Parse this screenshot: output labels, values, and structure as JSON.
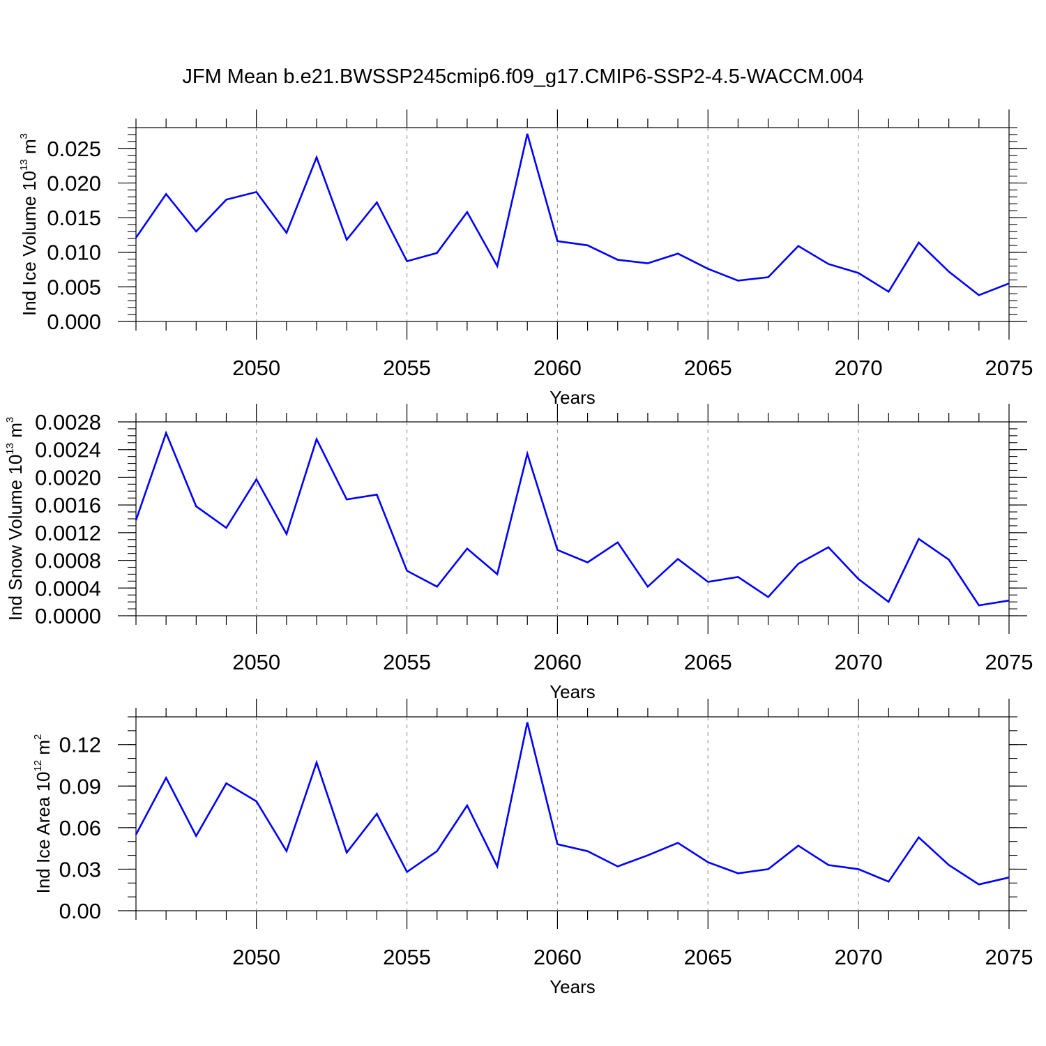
{
  "figure": {
    "title": "JFM Mean b.e21.BWSSP245cmip6.f09_g17.CMIP6-SSP2-4.5-WACCM.004",
    "line_color": "#0000ff",
    "grid_color": "#9a9a9a"
  },
  "chart_data": [
    {
      "type": "line",
      "title": "",
      "xlabel": "Years",
      "ylabel": {
        "base": "Ind Ice Volume 10",
        "exp": "13",
        "unit": " m",
        "unit_exp": "3"
      },
      "xlim": [
        2046,
        2075
      ],
      "ylim": [
        0,
        0.028
      ],
      "xticks": [
        2050,
        2055,
        2060,
        2065,
        2070,
        2075
      ],
      "xtick_labels": [
        "2050",
        "2055",
        "2060",
        "2065",
        "2070",
        "2075"
      ],
      "yticks": [
        0,
        0.005,
        0.01,
        0.015,
        0.02,
        0.025
      ],
      "ytick_labels": [
        "0.000",
        "0.005",
        "0.010",
        "0.015",
        "0.020",
        "0.025"
      ],
      "y_minor_step": 0.001,
      "grid": "vertical dashed at major x ticks",
      "x": [
        2046,
        2047,
        2048,
        2049,
        2050,
        2051,
        2052,
        2053,
        2054,
        2055,
        2056,
        2057,
        2058,
        2059,
        2060,
        2061,
        2062,
        2063,
        2064,
        2065,
        2066,
        2067,
        2068,
        2069,
        2070,
        2071,
        2072,
        2073,
        2074,
        2075
      ],
      "series": [
        {
          "values": [
            0.0121,
            0.0184,
            0.013,
            0.0176,
            0.0187,
            0.0128,
            0.0237,
            0.0118,
            0.0172,
            0.0087,
            0.0099,
            0.0158,
            0.008,
            0.0271,
            0.0116,
            0.011,
            0.0089,
            0.0084,
            0.0098,
            0.0076,
            0.0059,
            0.0064,
            0.0109,
            0.0083,
            0.007,
            0.0043,
            0.0114,
            0.0072,
            0.0038,
            0.0055
          ]
        }
      ]
    },
    {
      "type": "line",
      "title": "",
      "xlabel": "Years",
      "ylabel": {
        "base": "Ind Snow Volume 10",
        "exp": "13",
        "unit": " m",
        "unit_exp": "3"
      },
      "xlim": [
        2046,
        2075
      ],
      "ylim": [
        0,
        0.0028
      ],
      "xticks": [
        2050,
        2055,
        2060,
        2065,
        2070,
        2075
      ],
      "xtick_labels": [
        "2050",
        "2055",
        "2060",
        "2065",
        "2070",
        "2075"
      ],
      "yticks": [
        0,
        0.0004,
        0.0008,
        0.0012,
        0.0016,
        0.002,
        0.0024,
        0.0028
      ],
      "ytick_labels": [
        "0.0000",
        "0.0004",
        "0.0008",
        "0.0012",
        "0.0016",
        "0.0020",
        "0.0024",
        "0.0028"
      ],
      "y_minor_step": 0.0001,
      "grid": "vertical dashed at major x ticks",
      "x": [
        2046,
        2047,
        2048,
        2049,
        2050,
        2051,
        2052,
        2053,
        2054,
        2055,
        2056,
        2057,
        2058,
        2059,
        2060,
        2061,
        2062,
        2063,
        2064,
        2065,
        2066,
        2067,
        2068,
        2069,
        2070,
        2071,
        2072,
        2073,
        2074,
        2075
      ],
      "series": [
        {
          "values": [
            0.00138,
            0.00264,
            0.00158,
            0.00127,
            0.00197,
            0.00118,
            0.00255,
            0.00168,
            0.00175,
            0.00065,
            0.00042,
            0.00097,
            0.0006,
            0.00234,
            0.00095,
            0.00077,
            0.00106,
            0.00042,
            0.00082,
            0.00049,
            0.00056,
            0.00027,
            0.00075,
            0.00099,
            0.00053,
            0.0002,
            0.00111,
            0.00081,
            0.00015,
            0.00022
          ]
        }
      ]
    },
    {
      "type": "line",
      "title": "",
      "xlabel": "Years",
      "ylabel": {
        "base": "Ind Ice Area 10",
        "exp": "12",
        "unit": " m",
        "unit_exp": "2"
      },
      "xlim": [
        2046,
        2075
      ],
      "ylim": [
        0,
        0.14
      ],
      "xticks": [
        2050,
        2055,
        2060,
        2065,
        2070,
        2075
      ],
      "xtick_labels": [
        "2050",
        "2055",
        "2060",
        "2065",
        "2070",
        "2075"
      ],
      "yticks": [
        0,
        0.03,
        0.06,
        0.09,
        0.12
      ],
      "ytick_labels": [
        "0.00",
        "0.03",
        "0.06",
        "0.09",
        "0.12"
      ],
      "y_minor_step": 0.01,
      "grid": "vertical dashed at major x ticks",
      "x": [
        2046,
        2047,
        2048,
        2049,
        2050,
        2051,
        2052,
        2053,
        2054,
        2055,
        2056,
        2057,
        2058,
        2059,
        2060,
        2061,
        2062,
        2063,
        2064,
        2065,
        2066,
        2067,
        2068,
        2069,
        2070,
        2071,
        2072,
        2073,
        2074,
        2075
      ],
      "series": [
        {
          "values": [
            0.055,
            0.096,
            0.054,
            0.092,
            0.079,
            0.043,
            0.107,
            0.042,
            0.07,
            0.028,
            0.043,
            0.076,
            0.032,
            0.136,
            0.048,
            0.043,
            0.032,
            0.04,
            0.049,
            0.035,
            0.027,
            0.03,
            0.047,
            0.033,
            0.03,
            0.021,
            0.053,
            0.033,
            0.019,
            0.024
          ]
        }
      ]
    }
  ]
}
